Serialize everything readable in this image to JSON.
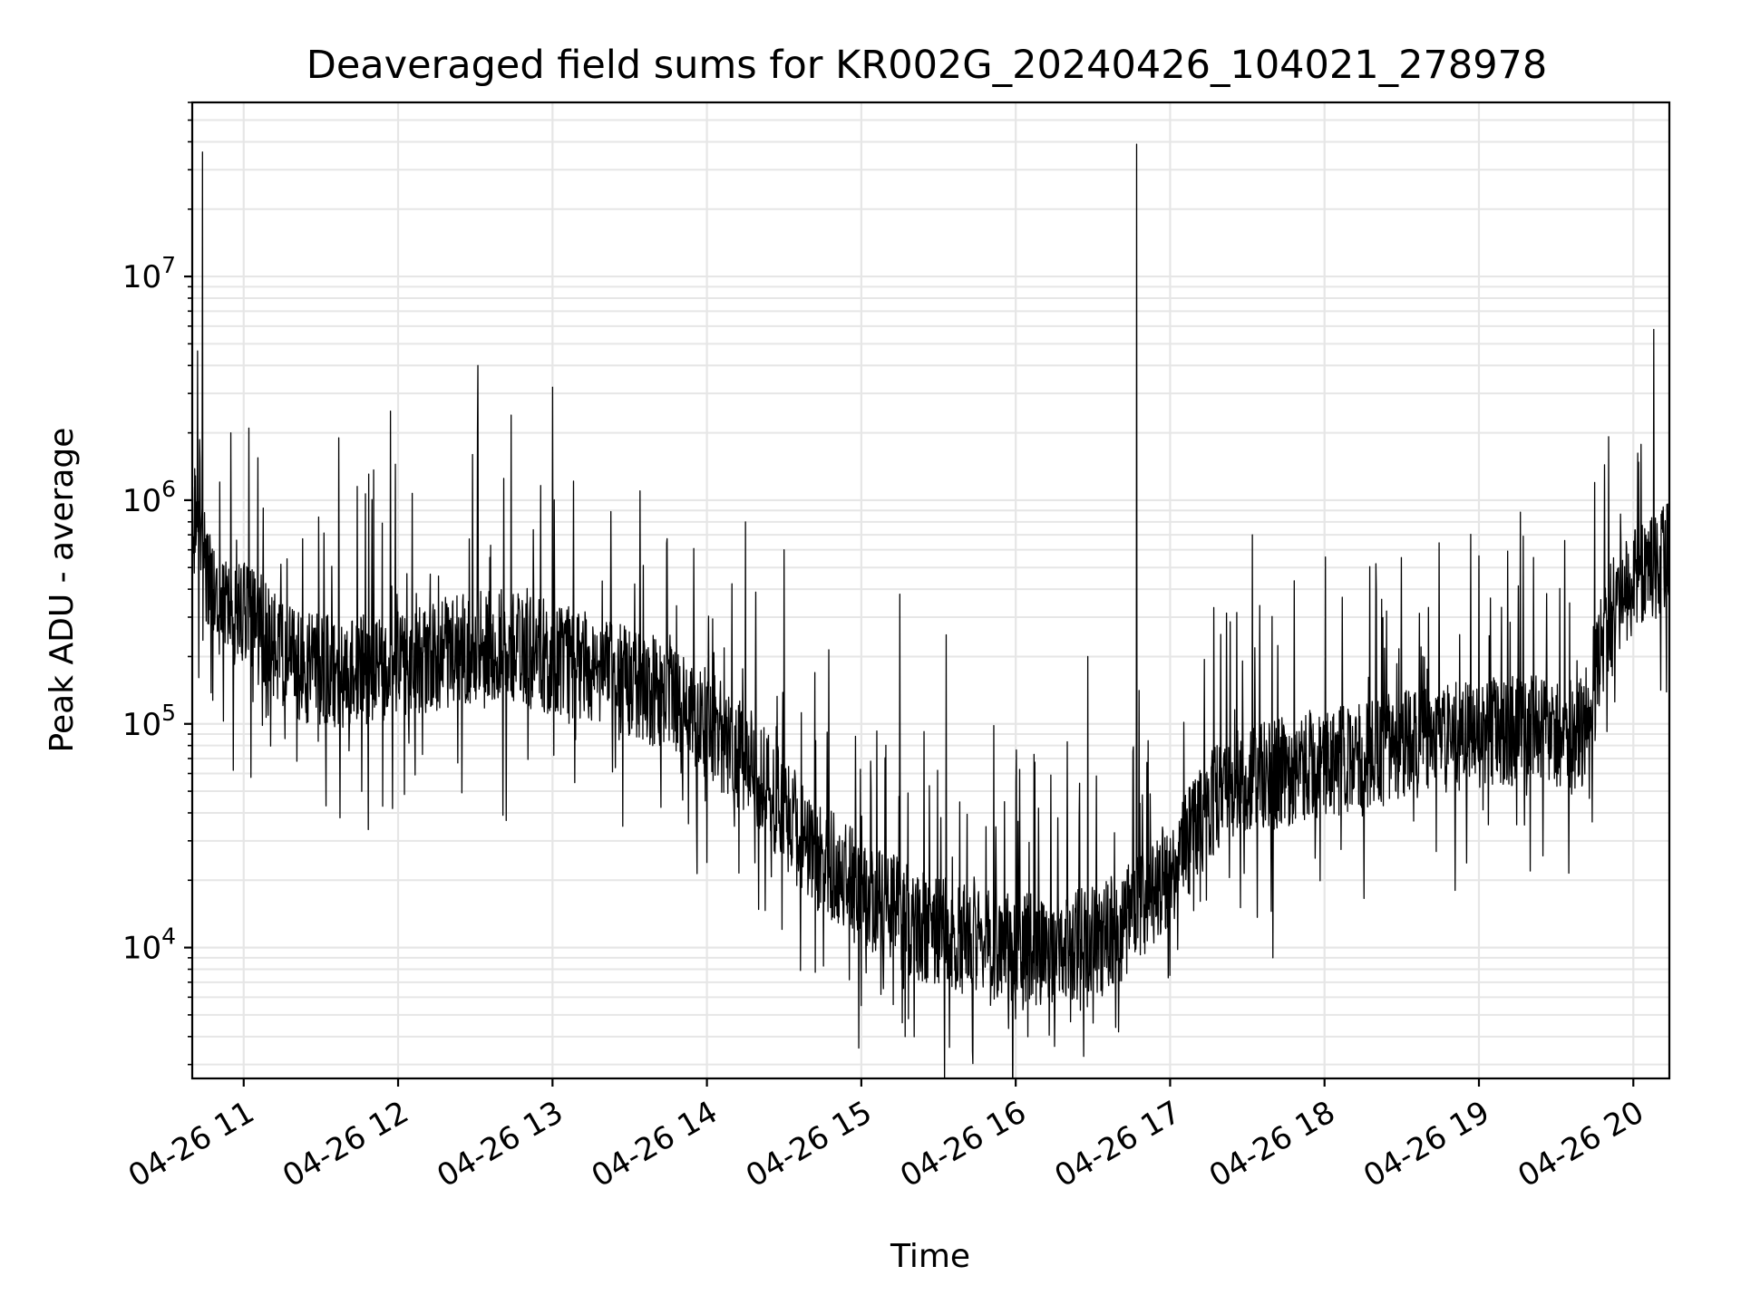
{
  "chart_data": {
    "type": "line",
    "title": "Deaveraged field sums for KR002G_20240426_104021_278978",
    "xlabel": "Time",
    "ylabel": "Peak ADU - average",
    "xscale": "time",
    "yscale": "log",
    "xlim": [
      "04-26 10:40",
      "04-26 20:14"
    ],
    "ylim": [
      2600,
      60000000
    ],
    "grid": true,
    "line_color": "#000000",
    "x_ticks": [
      "04-26 11",
      "04-26 12",
      "04-26 13",
      "04-26 14",
      "04-26 15",
      "04-26 16",
      "04-26 17",
      "04-26 18",
      "04-26 19",
      "04-26 20"
    ],
    "y_ticks": [
      {
        "base": "10",
        "exp": "4",
        "value": 10000
      },
      {
        "base": "10",
        "exp": "5",
        "value": 100000
      },
      {
        "base": "10",
        "exp": "6",
        "value": 1000000
      },
      {
        "base": "10",
        "exp": "7",
        "value": 10000000
      }
    ],
    "series": [
      {
        "trend": [
          {
            "t": "10:40",
            "v": 700000
          },
          {
            "t": "10:50",
            "v": 350000
          },
          {
            "t": "11:00",
            "v": 300000
          },
          {
            "t": "11:20",
            "v": 180000
          },
          {
            "t": "11:40",
            "v": 170000
          },
          {
            "t": "12:00",
            "v": 180000
          },
          {
            "t": "12:20",
            "v": 210000
          },
          {
            "t": "12:40",
            "v": 230000
          },
          {
            "t": "13:00",
            "v": 200000
          },
          {
            "t": "13:20",
            "v": 170000
          },
          {
            "t": "13:40",
            "v": 140000
          },
          {
            "t": "14:00",
            "v": 100000
          },
          {
            "t": "14:20",
            "v": 60000
          },
          {
            "t": "14:40",
            "v": 28000
          },
          {
            "t": "15:00",
            "v": 18000
          },
          {
            "t": "15:20",
            "v": 13000
          },
          {
            "t": "15:40",
            "v": 11000
          },
          {
            "t": "16:00",
            "v": 10000
          },
          {
            "t": "16:20",
            "v": 10000
          },
          {
            "t": "16:40",
            "v": 12000
          },
          {
            "t": "17:00",
            "v": 22000
          },
          {
            "t": "17:20",
            "v": 50000
          },
          {
            "t": "17:40",
            "v": 60000
          },
          {
            "t": "18:00",
            "v": 65000
          },
          {
            "t": "18:20",
            "v": 75000
          },
          {
            "t": "18:40",
            "v": 85000
          },
          {
            "t": "19:00",
            "v": 90000
          },
          {
            "t": "19:20",
            "v": 95000
          },
          {
            "t": "19:40",
            "v": 90000
          },
          {
            "t": "19:50",
            "v": 300000
          },
          {
            "t": "20:00",
            "v": 450000
          },
          {
            "t": "20:14",
            "v": 550000
          }
        ],
        "spikes": [
          {
            "t": "10:44",
            "v": 36000000
          },
          {
            "t": "10:43",
            "v": 1500000
          },
          {
            "t": "10:55",
            "v": 2000000
          },
          {
            "t": "11:02",
            "v": 2100000
          },
          {
            "t": "11:37",
            "v": 1900000
          },
          {
            "t": "11:57",
            "v": 2500000
          },
          {
            "t": "12:29",
            "v": 1600000
          },
          {
            "t": "12:31",
            "v": 4000000
          },
          {
            "t": "12:44",
            "v": 2400000
          },
          {
            "t": "13:00",
            "v": 3200000
          },
          {
            "t": "13:34",
            "v": 1100000
          },
          {
            "t": "14:15",
            "v": 800000
          },
          {
            "t": "14:30",
            "v": 600000
          },
          {
            "t": "15:15",
            "v": 380000
          },
          {
            "t": "15:33",
            "v": 250000
          },
          {
            "t": "16:28",
            "v": 200000
          },
          {
            "t": "16:47",
            "v": 39000000
          },
          {
            "t": "17:32",
            "v": 700000
          },
          {
            "t": "18:20",
            "v": 520000
          },
          {
            "t": "19:45",
            "v": 1200000
          },
          {
            "t": "20:08",
            "v": 5800000
          }
        ],
        "dips": [
          {
            "t": "10:56",
            "v": 62000
          },
          {
            "t": "11:32",
            "v": 43000
          },
          {
            "t": "12:42",
            "v": 37000
          },
          {
            "t": "14:00",
            "v": 24000
          },
          {
            "t": "15:00",
            "v": 5500
          },
          {
            "t": "15:17",
            "v": 4000
          },
          {
            "t": "16:00",
            "v": 4800
          },
          {
            "t": "16:30",
            "v": 4600
          },
          {
            "t": "16:40",
            "v": 4200
          },
          {
            "t": "17:40",
            "v": 9000
          },
          {
            "t": "19:20",
            "v": 22000
          }
        ]
      }
    ]
  }
}
